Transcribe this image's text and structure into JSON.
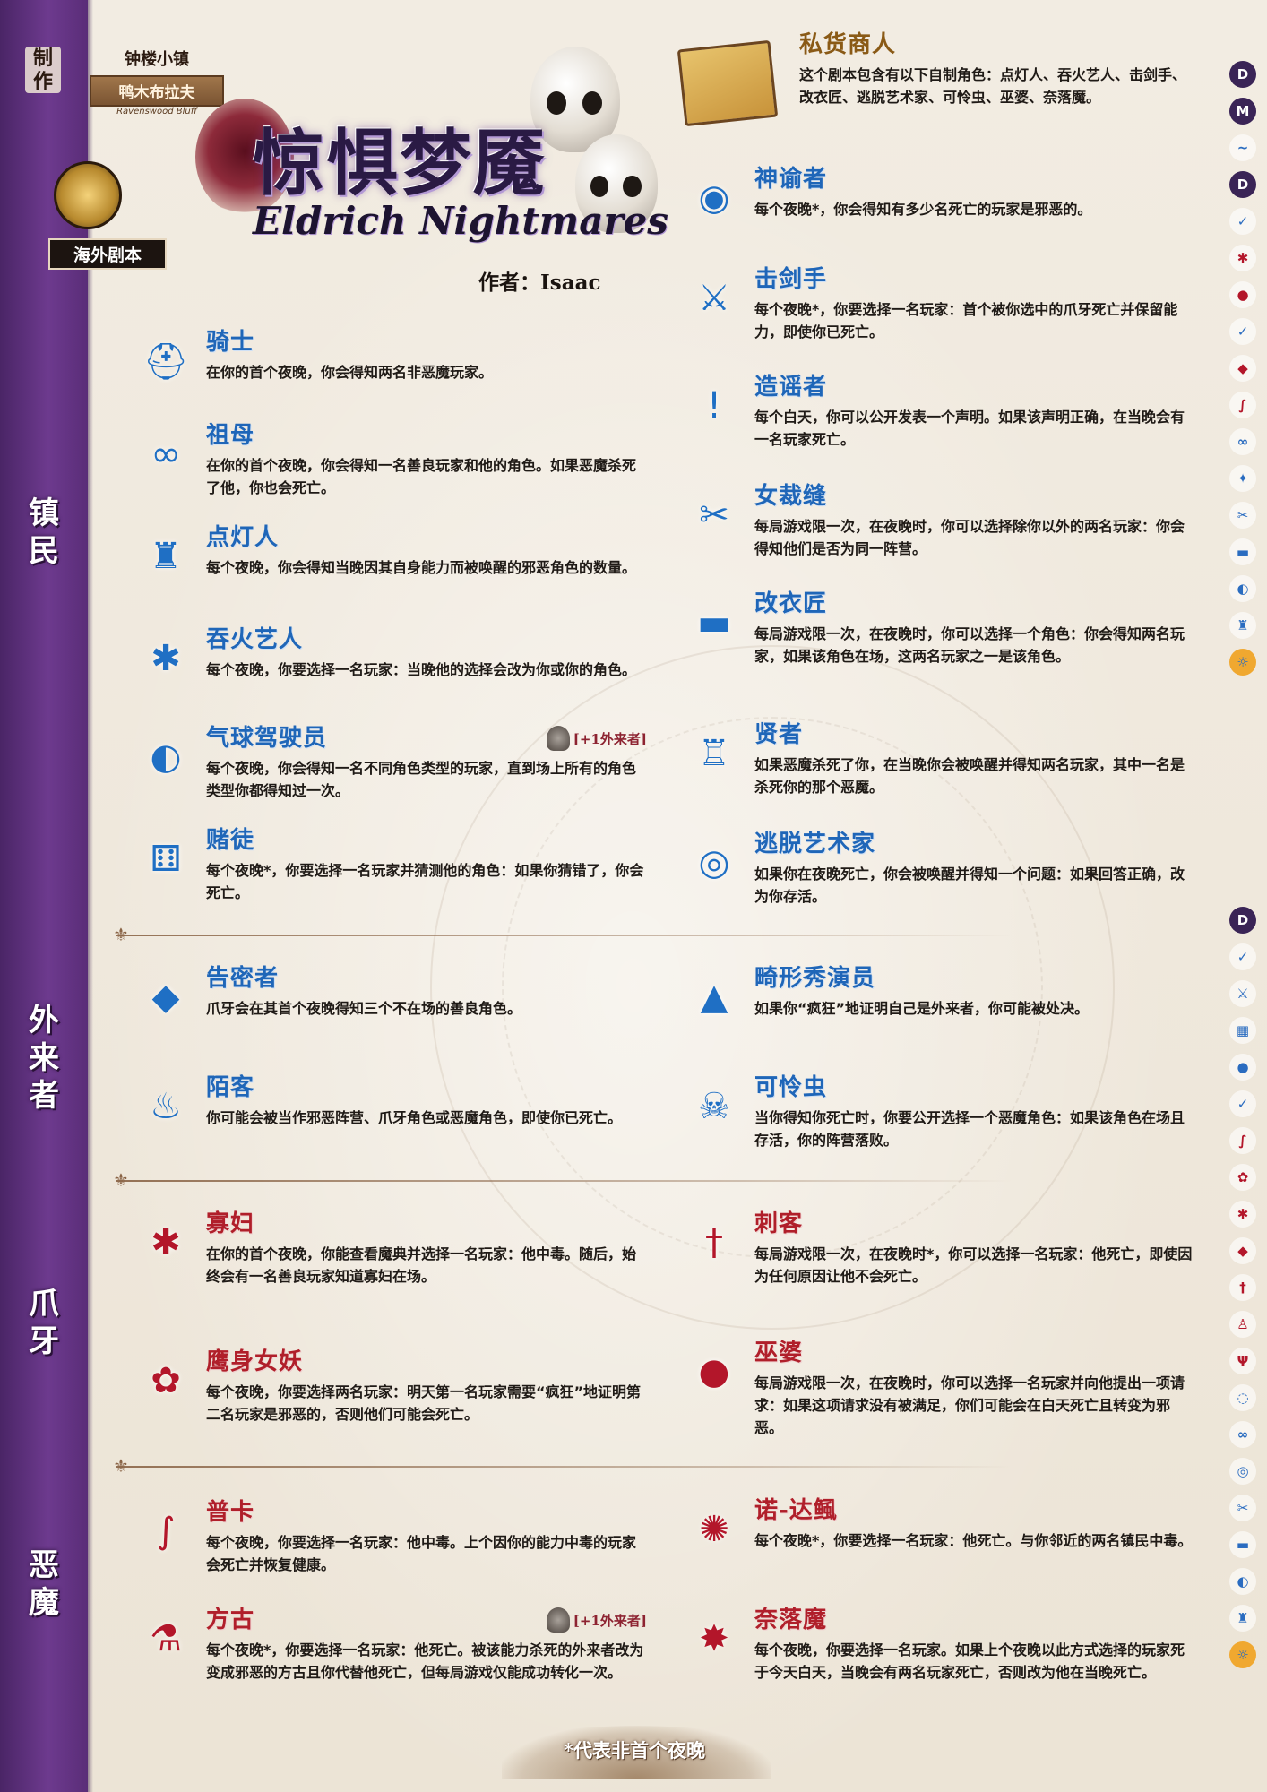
{
  "header": {
    "made_by": "制作",
    "town_name": "钟楼小镇",
    "town_banner": "鸭木布拉夫",
    "town_sub": "Ravenswood Bluff",
    "overseas_label": "海外剧本",
    "title_cn": "惊惧梦魇",
    "title_en": "Eldrich Nightmares",
    "author": "作者：Isaac"
  },
  "teams": {
    "townsfolk": "镇\n民",
    "outsider": "外\n来\n者",
    "minion": "爪\n牙",
    "demon": "恶\n魔"
  },
  "fabled": {
    "name": "私货商人",
    "desc": "这个剧本包含有以下自制角色：点灯人、吞火艺人、击剑手、改衣匠、逃脱艺术家、可怜虫、巫婆、奈落魔。"
  },
  "roles_left": [
    {
      "name": "骑士",
      "desc": "在你的首个夜晚，你会得知两名非恶魔玩家。"
    },
    {
      "name": "祖母",
      "desc": "在你的首个夜晚，你会得知一名善良玩家和他的角色。如果恶魔杀死了他，你也会死亡。"
    },
    {
      "name": "点灯人",
      "desc": "每个夜晚，你会得知当晚因其自身能力而被唤醒的邪恶角色的数量。"
    },
    {
      "name": "吞火艺人",
      "desc": "每个夜晚，你要选择一名玩家：当晚他的选择会改为你或你的角色。"
    },
    {
      "name": "气球驾驶员",
      "desc": "每个夜晚，你会得知一名不同角色类型的玩家，直到场上所有的角色类型你都得知过一次。",
      "badge": "[+1外来者]"
    },
    {
      "name": "赌徒",
      "desc": "每个夜晚*，你要选择一名玩家并猜测他的角色：如果你猜错了，你会死亡。"
    },
    {
      "name": "告密者",
      "desc": "爪牙会在其首个夜晚得知三个不在场的善良角色。"
    },
    {
      "name": "陌客",
      "desc": "你可能会被当作邪恶阵营、爪牙角色或恶魔角色，即使你已死亡。"
    },
    {
      "name": "寡妇",
      "desc": "在你的首个夜晚，你能查看魔典并选择一名玩家：他中毒。随后，始终会有一名善良玩家知道寡妇在场。"
    },
    {
      "name": "鹰身女妖",
      "desc": "每个夜晚，你要选择两名玩家：明天第一名玩家需要“疯狂”地证明第二名玩家是邪恶的，否则他们可能会死亡。"
    },
    {
      "name": "普卡",
      "desc": "每个夜晚，你要选择一名玩家：他中毒。上个因你的能力中毒的玩家会死亡并恢复健康。"
    },
    {
      "name": "方古",
      "desc": "每个夜晚*，你要选择一名玩家：他死亡。被该能力杀死的外来者改为变成邪恶的方古且你代替他死亡，但每局游戏仅能成功转化一次。",
      "badge": "[+1外来者]"
    }
  ],
  "roles_right": [
    {
      "name": "神谕者",
      "desc": "每个夜晚*，你会得知有多少名死亡的玩家是邪恶的。"
    },
    {
      "name": "击剑手",
      "desc": "每个夜晚*，你要选择一名玩家：首个被你选中的爪牙死亡并保留能力，即使你已死亡。"
    },
    {
      "name": "造谣者",
      "desc": "每个白天，你可以公开发表一个声明。如果该声明正确，在当晚会有一名玩家死亡。"
    },
    {
      "name": "女裁缝",
      "desc": "每局游戏限一次，在夜晚时，你可以选择除你以外的两名玩家：你会得知他们是否为同一阵营。"
    },
    {
      "name": "改衣匠",
      "desc": "每局游戏限一次，在夜晚时，你可以选择一个角色：你会得知两名玩家，如果该角色在场，这两名玩家之一是该角色。"
    },
    {
      "name": "贤者",
      "desc": "如果恶魔杀死了你，在当晚你会被唤醒并得知两名玩家，其中一名是杀死你的那个恶魔。"
    },
    {
      "name": "逃脱艺术家",
      "desc": "如果你在夜晚死亡，你会被唤醒并得知一个问题：如果回答正确，改为你存活。"
    },
    {
      "name": "畸形秀演员",
      "desc": "如果你“疯狂”地证明自己是外来者，你可能被处决。"
    },
    {
      "name": "可怜虫",
      "desc": "当你得知你死亡时，你要公开选择一个恶魔角色：如果该角色在场且存活，你的阵营落败。"
    },
    {
      "name": "刺客",
      "desc": "每局游戏限一次，在夜晚时*，你可以选择一名玩家：他死亡，即使因为任何原因让他不会死亡。"
    },
    {
      "name": "巫婆",
      "desc": "每局游戏限一次，在夜晚时，你可以选择一名玩家并向他提出一项请求：如果这项请求没有被满足，你们可能会在白天死亡且转变为邪恶。"
    },
    {
      "name": "诺-达鲺",
      "desc": "每个夜晚*，你要选择一名玩家：他死亡。与你邻近的两名镇民中毒。"
    },
    {
      "name": "奈落魔",
      "desc": "每个夜晚，你要选择一名玩家。如果上个夜晚以此方式选择的玩家死于今天白天，当晚会有两名玩家死亡，否则改为他在当晚死亡。"
    }
  ],
  "night_first": [
    "D",
    "M",
    "~",
    "D",
    "✓",
    "✱",
    "●",
    "✓",
    "◆",
    "∫",
    "∞",
    "✦",
    "✂",
    "▬",
    "◐",
    "♜",
    "☼"
  ],
  "night_other": [
    "D",
    "✓",
    "⚔",
    "▦",
    "●",
    "✓",
    "∫",
    "✿",
    "✱",
    "◆",
    "†",
    "♙",
    "Ψ",
    "◌",
    "∞",
    "◎",
    "✂",
    "▬",
    "◐",
    "♜",
    "☼"
  ],
  "footnote": "*代表非首个夜晚",
  "colors": {
    "good": "#1f66b8",
    "evil": "#b01f2a",
    "strip": "#5a2d78"
  }
}
